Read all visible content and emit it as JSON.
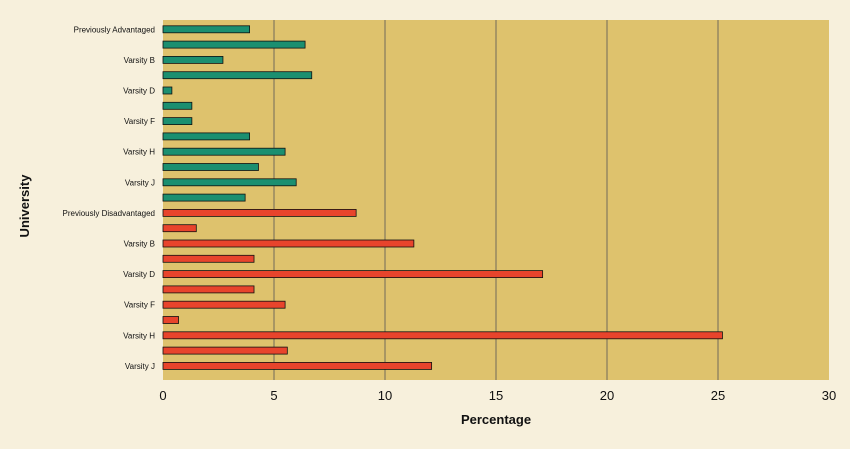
{
  "chart_data": {
    "type": "bar",
    "orientation": "horizontal",
    "title": "",
    "xlabel": "Percentage",
    "ylabel": "University",
    "xlim": [
      0,
      30
    ],
    "xticks": [
      0,
      5,
      10,
      15,
      20,
      25,
      30
    ],
    "grid": "vertical",
    "legend": "none",
    "colors": {
      "plot_background": "#dec26d",
      "page_background": "#f7f0dc",
      "advantaged": "#1b8f70",
      "disadvantaged": "#e8442c",
      "gridline": "#555555"
    },
    "bars": [
      {
        "label": "Previously Advantaged",
        "value": 3.9,
        "group": "advantaged"
      },
      {
        "label": "",
        "value": 6.4,
        "group": "advantaged"
      },
      {
        "label": "Varsity B",
        "value": 2.7,
        "group": "advantaged"
      },
      {
        "label": "",
        "value": 6.7,
        "group": "advantaged"
      },
      {
        "label": "Varsity D",
        "value": 0.4,
        "group": "advantaged"
      },
      {
        "label": "",
        "value": 1.3,
        "group": "advantaged"
      },
      {
        "label": "Varsity F",
        "value": 1.3,
        "group": "advantaged"
      },
      {
        "label": "",
        "value": 3.9,
        "group": "advantaged"
      },
      {
        "label": "Varsity H",
        "value": 5.5,
        "group": "advantaged"
      },
      {
        "label": "",
        "value": 4.3,
        "group": "advantaged"
      },
      {
        "label": "Varsity J",
        "value": 6.0,
        "group": "advantaged"
      },
      {
        "label": "",
        "value": 3.7,
        "group": "advantaged"
      },
      {
        "label": "Previously Disadvantaged",
        "value": 8.7,
        "group": "disadvantaged"
      },
      {
        "label": "",
        "value": 1.5,
        "group": "disadvantaged"
      },
      {
        "label": "Varsity B",
        "value": 11.3,
        "group": "disadvantaged"
      },
      {
        "label": "",
        "value": 4.1,
        "group": "disadvantaged"
      },
      {
        "label": "Varsity D",
        "value": 17.1,
        "group": "disadvantaged"
      },
      {
        "label": "",
        "value": 4.1,
        "group": "disadvantaged"
      },
      {
        "label": "Varsity F",
        "value": 5.5,
        "group": "disadvantaged"
      },
      {
        "label": "",
        "value": 0.7,
        "group": "disadvantaged"
      },
      {
        "label": "Varsity H",
        "value": 25.2,
        "group": "disadvantaged"
      },
      {
        "label": "",
        "value": 5.6,
        "group": "disadvantaged"
      },
      {
        "label": "Varsity J",
        "value": 12.1,
        "group": "disadvantaged"
      }
    ]
  }
}
